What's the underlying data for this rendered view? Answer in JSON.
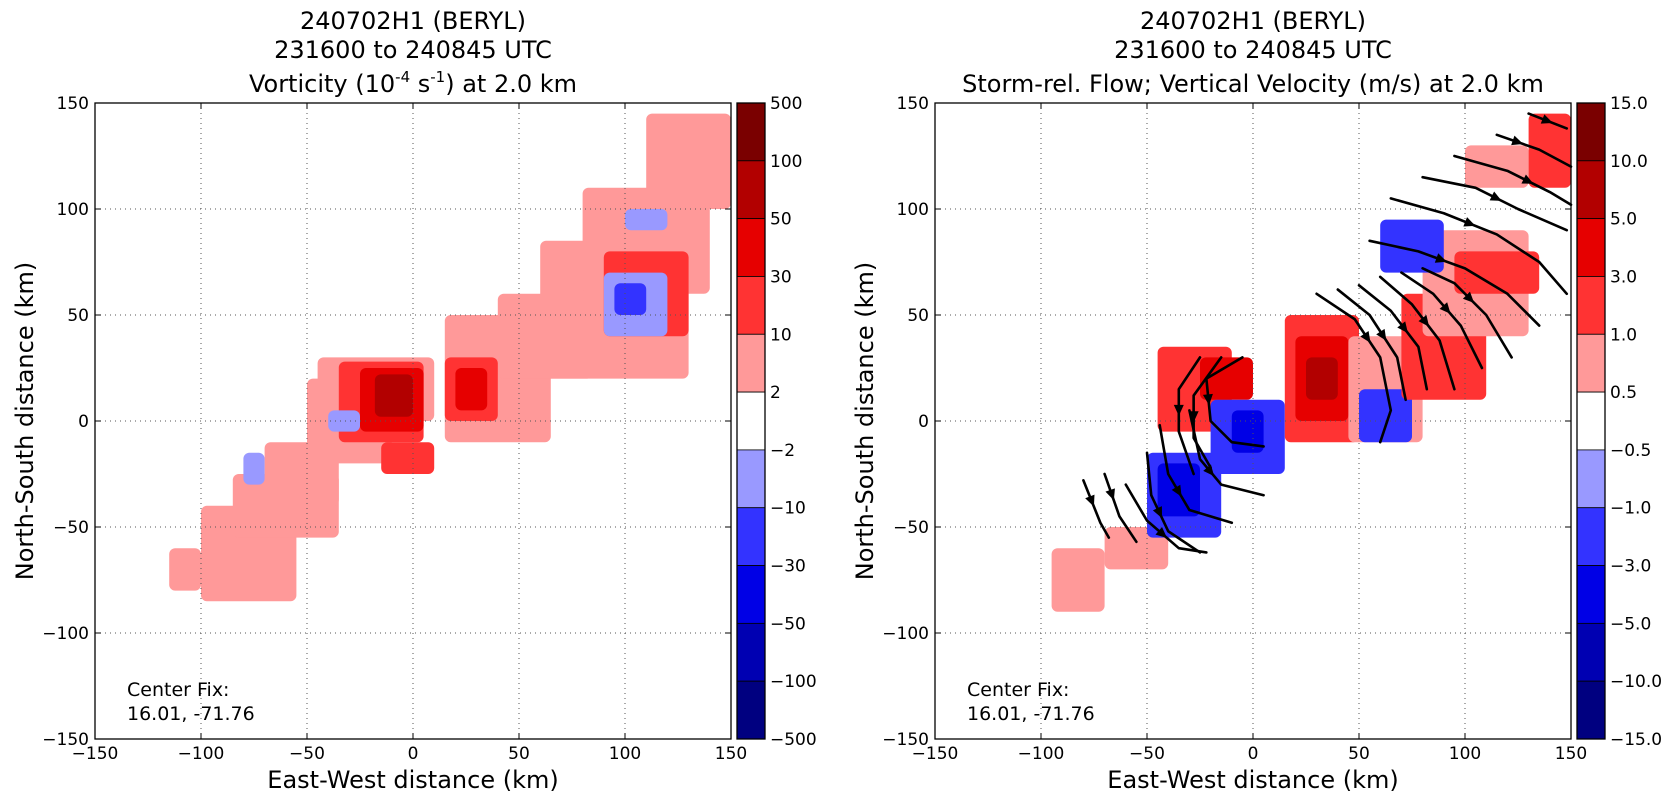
{
  "chart_data": [
    {
      "type": "heatmap",
      "title_lines": [
        "240702H1 (BERYL)",
        "231600 to 240845 UTC"
      ],
      "title_var": {
        "pre": "Vorticity (10",
        "sup1": "-4",
        "mid": " s",
        "sup2": "-1",
        "post": ") at 2.0 km"
      },
      "xlabel": "East-West distance (km)",
      "ylabel": "North-South distance (km)",
      "xlim": [
        -150,
        150
      ],
      "ylim": [
        -150,
        150
      ],
      "xticks": [
        -150,
        -100,
        -50,
        0,
        50,
        100,
        150
      ],
      "yticks": [
        -150,
        -100,
        -50,
        0,
        50,
        100,
        150
      ],
      "grid": true,
      "annotation": [
        "Center Fix:",
        "16.01, -71.76"
      ],
      "colorbar": {
        "labels": [
          "500",
          "100",
          "50",
          "30",
          "10",
          "2",
          "−2",
          "−10",
          "−30",
          "−50",
          "−100",
          "−500"
        ],
        "colors": [
          "#7a0000",
          "#b20000",
          "#e60000",
          "#ff3333",
          "#ff9999",
          "#ffffff",
          "#9999ff",
          "#3333ff",
          "#0000e6",
          "#0000b2",
          "#000080"
        ]
      },
      "cells": [
        {
          "x": [
            -115,
            -100
          ],
          "y": [
            -80,
            -60
          ],
          "level": 1
        },
        {
          "x": [
            -100,
            -55
          ],
          "y": [
            -85,
            -40
          ],
          "level": 1
        },
        {
          "x": [
            -85,
            -35
          ],
          "y": [
            -55,
            -25
          ],
          "level": 1
        },
        {
          "x": [
            -70,
            -35
          ],
          "y": [
            -40,
            -10
          ],
          "level": 1
        },
        {
          "x": [
            -50,
            -10
          ],
          "y": [
            -20,
            20
          ],
          "level": 1
        },
        {
          "x": [
            -45,
            10
          ],
          "y": [
            0,
            30
          ],
          "level": 1
        },
        {
          "x": [
            15,
            65
          ],
          "y": [
            -10,
            50
          ],
          "level": 1
        },
        {
          "x": [
            40,
            85
          ],
          "y": [
            20,
            60
          ],
          "level": 1
        },
        {
          "x": [
            60,
            130
          ],
          "y": [
            20,
            85
          ],
          "level": 1
        },
        {
          "x": [
            80,
            140
          ],
          "y": [
            60,
            110
          ],
          "level": 1
        },
        {
          "x": [
            110,
            150
          ],
          "y": [
            100,
            145
          ],
          "level": 1
        },
        {
          "x": [
            -35,
            5
          ],
          "y": [
            -10,
            28
          ],
          "level": 2
        },
        {
          "x": [
            -25,
            5
          ],
          "y": [
            -5,
            25
          ],
          "level": 3
        },
        {
          "x": [
            -18,
            0
          ],
          "y": [
            2,
            22
          ],
          "level": 4
        },
        {
          "x": [
            15,
            40
          ],
          "y": [
            0,
            30
          ],
          "level": 2
        },
        {
          "x": [
            20,
            35
          ],
          "y": [
            5,
            25
          ],
          "level": 3
        },
        {
          "x": [
            90,
            130
          ],
          "y": [
            40,
            80
          ],
          "level": 2
        },
        {
          "x": [
            -15,
            10
          ],
          "y": [
            -25,
            -10
          ],
          "level": 2
        },
        {
          "x": [
            -80,
            -70
          ],
          "y": [
            -30,
            -15
          ],
          "level": -1
        },
        {
          "x": [
            90,
            120
          ],
          "y": [
            40,
            70
          ],
          "level": -1
        },
        {
          "x": [
            95,
            110
          ],
          "y": [
            50,
            65
          ],
          "level": -2
        },
        {
          "x": [
            100,
            120
          ],
          "y": [
            90,
            100
          ],
          "level": -1
        },
        {
          "x": [
            -40,
            -25
          ],
          "y": [
            -5,
            5
          ],
          "level": -1
        }
      ]
    },
    {
      "type": "heatmap",
      "title_lines": [
        "240702H1 (BERYL)",
        "231600 to 240845 UTC"
      ],
      "title_var": {
        "pre": "Storm-rel. Flow; Vertical Velocity (m/s) at 2.0 km",
        "sup1": "",
        "mid": "",
        "sup2": "",
        "post": ""
      },
      "xlabel": "East-West distance (km)",
      "ylabel": "North-South distance (km)",
      "xlim": [
        -150,
        150
      ],
      "ylim": [
        -150,
        150
      ],
      "xticks": [
        -150,
        -100,
        -50,
        0,
        50,
        100,
        150
      ],
      "yticks": [
        -150,
        -100,
        -50,
        0,
        50,
        100,
        150
      ],
      "grid": true,
      "annotation": [
        "Center Fix:",
        "16.01, -71.76"
      ],
      "colorbar": {
        "labels": [
          "15.0",
          "10.0",
          "5.0",
          "3.0",
          "1.0",
          "0.5",
          "−0.5",
          "−1.0",
          "−3.0",
          "−5.0",
          "−10.0",
          "−15.0"
        ],
        "colors": [
          "#7a0000",
          "#b20000",
          "#e60000",
          "#ff3333",
          "#ff9999",
          "#ffffff",
          "#9999ff",
          "#3333ff",
          "#0000e6",
          "#0000b2",
          "#000080"
        ]
      },
      "cells": [
        {
          "x": [
            -95,
            -70
          ],
          "y": [
            -90,
            -60
          ],
          "level": 1
        },
        {
          "x": [
            -70,
            -40
          ],
          "y": [
            -70,
            -50
          ],
          "level": 1
        },
        {
          "x": [
            -45,
            -10
          ],
          "y": [
            -5,
            35
          ],
          "level": 2
        },
        {
          "x": [
            -25,
            0
          ],
          "y": [
            10,
            30
          ],
          "level": 3
        },
        {
          "x": [
            -50,
            -15
          ],
          "y": [
            -55,
            -15
          ],
          "level": -2
        },
        {
          "x": [
            -45,
            -25
          ],
          "y": [
            -45,
            -20
          ],
          "level": -3
        },
        {
          "x": [
            -20,
            15
          ],
          "y": [
            -25,
            10
          ],
          "level": -2
        },
        {
          "x": [
            -10,
            5
          ],
          "y": [
            -15,
            5
          ],
          "level": -3
        },
        {
          "x": [
            15,
            50
          ],
          "y": [
            -10,
            50
          ],
          "level": 2
        },
        {
          "x": [
            20,
            45
          ],
          "y": [
            0,
            40
          ],
          "level": 3
        },
        {
          "x": [
            25,
            40
          ],
          "y": [
            10,
            30
          ],
          "level": 4
        },
        {
          "x": [
            45,
            80
          ],
          "y": [
            -10,
            40
          ],
          "level": 1
        },
        {
          "x": [
            50,
            75
          ],
          "y": [
            -10,
            15
          ],
          "level": -2
        },
        {
          "x": [
            70,
            110
          ],
          "y": [
            10,
            60
          ],
          "level": 2
        },
        {
          "x": [
            80,
            130
          ],
          "y": [
            40,
            90
          ],
          "level": 1
        },
        {
          "x": [
            95,
            135
          ],
          "y": [
            60,
            80
          ],
          "level": 2
        },
        {
          "x": [
            60,
            90
          ],
          "y": [
            70,
            95
          ],
          "level": -2
        },
        {
          "x": [
            100,
            130
          ],
          "y": [
            110,
            130
          ],
          "level": 1
        },
        {
          "x": [
            130,
            150
          ],
          "y": [
            110,
            145
          ],
          "level": 2
        }
      ],
      "streamlines": [
        [
          [
            -70,
            -25
          ],
          [
            -63,
            -45
          ],
          [
            -55,
            -57
          ]
        ],
        [
          [
            -80,
            -28
          ],
          [
            -72,
            -48
          ],
          [
            -68,
            -55
          ]
        ],
        [
          [
            -60,
            -30
          ],
          [
            -50,
            -47
          ],
          [
            -35,
            -60
          ],
          [
            -22,
            -62
          ]
        ],
        [
          [
            -50,
            -15
          ],
          [
            -48,
            -35
          ],
          [
            -40,
            -52
          ],
          [
            -25,
            -62
          ]
        ],
        [
          [
            -44,
            -2
          ],
          [
            -40,
            -25
          ],
          [
            -30,
            -42
          ],
          [
            -10,
            -48
          ]
        ],
        [
          [
            -30,
            5
          ],
          [
            -25,
            -18
          ],
          [
            -15,
            -30
          ],
          [
            5,
            -35
          ]
        ],
        [
          [
            -25,
            30
          ],
          [
            -35,
            15
          ],
          [
            -35,
            -5
          ],
          [
            -28,
            -25
          ]
        ],
        [
          [
            -15,
            30
          ],
          [
            -28,
            12
          ],
          [
            -28,
            -8
          ],
          [
            -20,
            -22
          ]
        ],
        [
          [
            -5,
            30
          ],
          [
            -22,
            20
          ],
          [
            -20,
            0
          ],
          [
            -10,
            -10
          ],
          [
            5,
            -12
          ]
        ],
        [
          [
            30,
            60
          ],
          [
            48,
            48
          ],
          [
            60,
            30
          ],
          [
            65,
            5
          ],
          [
            60,
            -10
          ]
        ],
        [
          [
            40,
            62
          ],
          [
            55,
            50
          ],
          [
            68,
            30
          ],
          [
            72,
            10
          ]
        ],
        [
          [
            50,
            64
          ],
          [
            65,
            52
          ],
          [
            78,
            35
          ],
          [
            82,
            15
          ]
        ],
        [
          [
            60,
            68
          ],
          [
            75,
            55
          ],
          [
            88,
            38
          ],
          [
            95,
            15
          ]
        ],
        [
          [
            70,
            70
          ],
          [
            85,
            60
          ],
          [
            98,
            45
          ],
          [
            108,
            25
          ]
        ],
        [
          [
            80,
            72
          ],
          [
            95,
            65
          ],
          [
            110,
            50
          ],
          [
            122,
            30
          ]
        ],
        [
          [
            55,
            85
          ],
          [
            78,
            80
          ],
          [
            100,
            72
          ],
          [
            120,
            60
          ],
          [
            135,
            45
          ]
        ],
        [
          [
            65,
            105
          ],
          [
            90,
            98
          ],
          [
            115,
            88
          ],
          [
            135,
            75
          ],
          [
            148,
            60
          ]
        ],
        [
          [
            80,
            115
          ],
          [
            105,
            110
          ],
          [
            125,
            100
          ],
          [
            148,
            90
          ]
        ],
        [
          [
            95,
            125
          ],
          [
            120,
            118
          ],
          [
            140,
            108
          ],
          [
            150,
            102
          ]
        ],
        [
          [
            115,
            135
          ],
          [
            135,
            128
          ],
          [
            150,
            120
          ]
        ],
        [
          [
            130,
            145
          ],
          [
            148,
            138
          ]
        ]
      ]
    }
  ]
}
